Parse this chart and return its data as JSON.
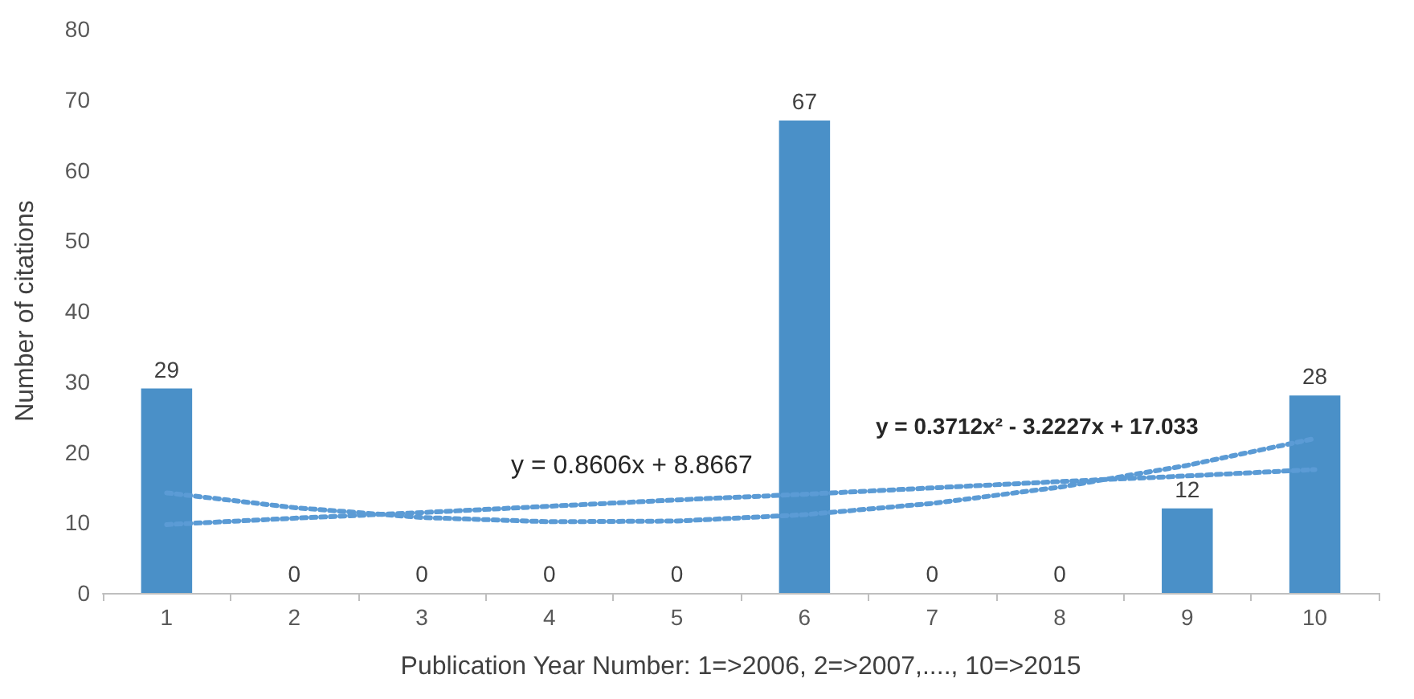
{
  "chart_data": {
    "type": "bar",
    "xlabel": "Publication Year Number: 1=>2006, 2=>2007,...., 10=>2015",
    "ylabel": "Number of citations",
    "categories": [
      "1",
      "2",
      "3",
      "4",
      "5",
      "6",
      "7",
      "8",
      "9",
      "10"
    ],
    "series": [
      {
        "color": "#4a90c8",
        "values": [
          29,
          0,
          0,
          0,
          0,
          67,
          0,
          0,
          12,
          28
        ],
        "value_labels": [
          "29",
          "0",
          "0",
          "0",
          "0",
          "67",
          "0",
          "0",
          "12",
          "28"
        ]
      },
      {
        "type": "line",
        "color": "#5b9bd5",
        "x": [
          "1",
          "2",
          "3",
          "4",
          "5",
          "6",
          "7",
          "8",
          "9",
          "10"
        ],
        "values": [
          9.7,
          10.6,
          11.4,
          12.3,
          13.2,
          14.0,
          14.9,
          15.8,
          16.6,
          17.5
        ]
      },
      {
        "type": "line",
        "color": "#5b9bd5",
        "x": [
          "1",
          "2",
          "3",
          "4",
          "5",
          "6",
          "7",
          "8",
          "9",
          "10"
        ],
        "values": [
          14.2,
          12.1,
          10.7,
          10.1,
          10.2,
          11.1,
          12.7,
          15.0,
          18.1,
          21.9
        ]
      }
    ],
    "ylim": [
      0,
      80
    ],
    "yticks": [
      0,
      10,
      20,
      30,
      40,
      50,
      60,
      70,
      80
    ],
    "grid": false,
    "line_style": "dotted",
    "marker": "none",
    "annotations": [
      "y = 0.8606x + 8.8667",
      "y = 0.3712x² - 3.2227x + 17.033"
    ]
  }
}
